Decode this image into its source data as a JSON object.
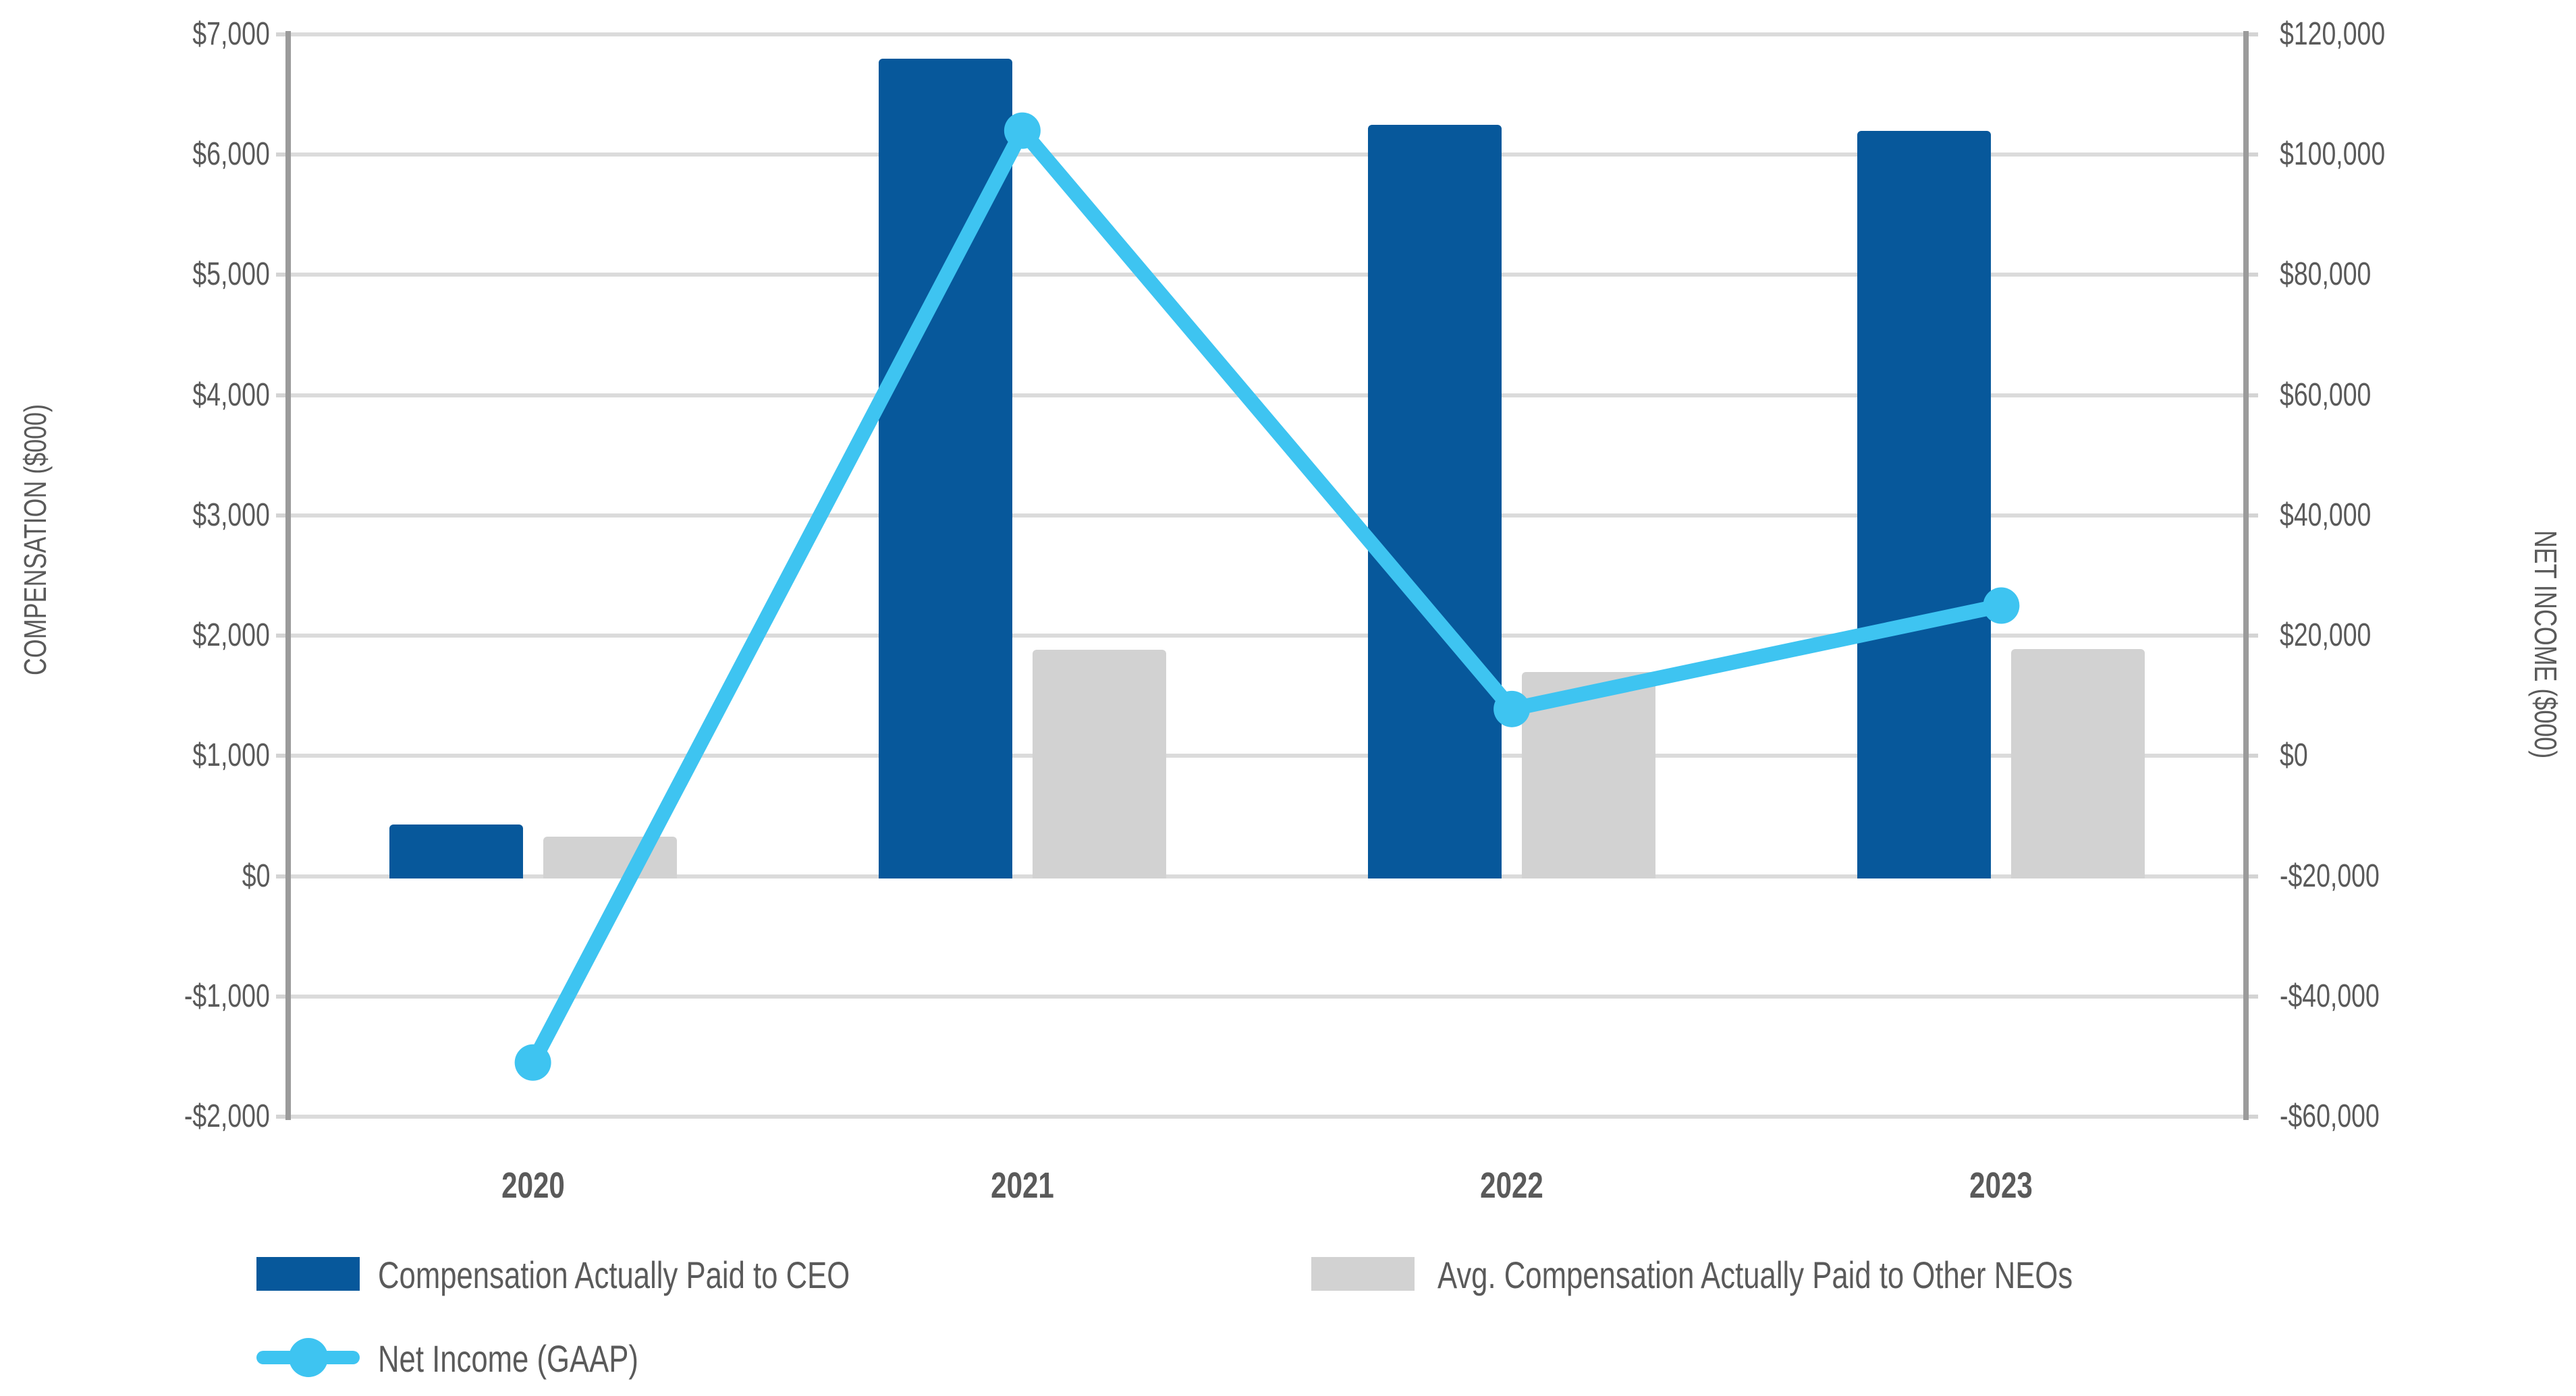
{
  "chart_data": {
    "type": "combo (grouped bars + line, dual y-axis)",
    "categories": [
      "2020",
      "2021",
      "2022",
      "2023"
    ],
    "series": [
      {
        "name": "Compensation Actually Paid to CEO",
        "type": "bar",
        "axis": "left",
        "color": "#07589b",
        "values": [
          430,
          6800,
          6250,
          6200
        ]
      },
      {
        "name": "Avg. Compensation Actually Paid to Other NEOs",
        "type": "bar",
        "axis": "left",
        "color": "#d2d2d2",
        "values": [
          330,
          1880,
          1700,
          1890
        ]
      },
      {
        "name": "Net Income (GAAP)",
        "type": "line",
        "axis": "right",
        "color": "#3ec4f1",
        "marker": "circle",
        "values": [
          -51000,
          104000,
          7800,
          25000
        ]
      }
    ],
    "left_axis": {
      "title": "COMPENSATION ($000)",
      "min": -2000,
      "max": 7000,
      "tick_step": 1000,
      "ticks": [
        {
          "v": 7000,
          "label": "$7,000"
        },
        {
          "v": 6000,
          "label": "$6,000"
        },
        {
          "v": 5000,
          "label": "$5,000"
        },
        {
          "v": 4000,
          "label": "$4,000"
        },
        {
          "v": 3000,
          "label": "$3,000"
        },
        {
          "v": 2000,
          "label": "$2,000"
        },
        {
          "v": 1000,
          "label": "$1,000"
        },
        {
          "v": 0,
          "label": "$0"
        },
        {
          "v": -1000,
          "label": "-$1,000"
        },
        {
          "v": -2000,
          "label": "-$2,000"
        }
      ]
    },
    "right_axis": {
      "title": "NET INCOME ($000)",
      "min": -60000,
      "max": 120000,
      "tick_step": 20000,
      "ticks": [
        {
          "v": 120000,
          "label": "$120,000"
        },
        {
          "v": 100000,
          "label": "$100,000"
        },
        {
          "v": 80000,
          "label": "$80,000"
        },
        {
          "v": 60000,
          "label": "$60,000"
        },
        {
          "v": 40000,
          "label": "$40,000"
        },
        {
          "v": 20000,
          "label": "$20,000"
        },
        {
          "v": 0,
          "label": "$0"
        },
        {
          "v": -20000,
          "label": "-$20,000"
        },
        {
          "v": -40000,
          "label": "-$40,000"
        },
        {
          "v": -60000,
          "label": "-$60,000"
        }
      ]
    },
    "grid": true,
    "legend_position": "bottom-left"
  },
  "colors": {
    "ceo_bar": "#07589b",
    "neo_bar": "#d2d2d2",
    "net_income_line": "#3ec4f1",
    "gridline": "#dbdbdb",
    "axis_line": "#9b9b9b",
    "text": "#5a5a5a",
    "background": "#ffffff"
  }
}
